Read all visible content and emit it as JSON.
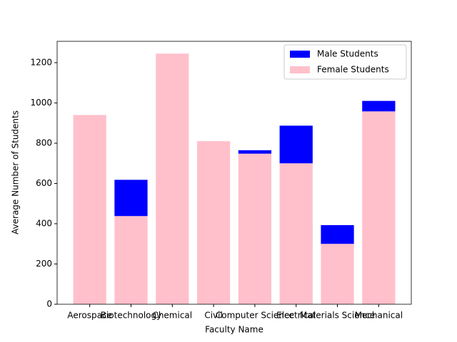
{
  "chart_data": {
    "type": "bar",
    "stacked": true,
    "xlabel": "Faculty Name",
    "ylabel": "Average Number of Students",
    "categories": [
      "Aerospace",
      "Biotechnology",
      "Chemical",
      "Civil",
      "Computer Science",
      "Electrical",
      "Materials Science",
      "Mechanical"
    ],
    "series": [
      {
        "name": "Female Students",
        "color": "pink",
        "values": [
          940,
          438,
          1245,
          810,
          748,
          700,
          300,
          958
        ]
      },
      {
        "name": "Male Students",
        "color": "blue",
        "values": [
          0,
          180,
          0,
          0,
          17,
          187,
          93,
          52
        ]
      }
    ],
    "ylim": [
      0,
      1306
    ],
    "yticks": [
      0,
      200,
      400,
      600,
      800,
      1000,
      1200
    ],
    "legend_order": [
      1,
      0
    ],
    "legend": "upper right"
  }
}
